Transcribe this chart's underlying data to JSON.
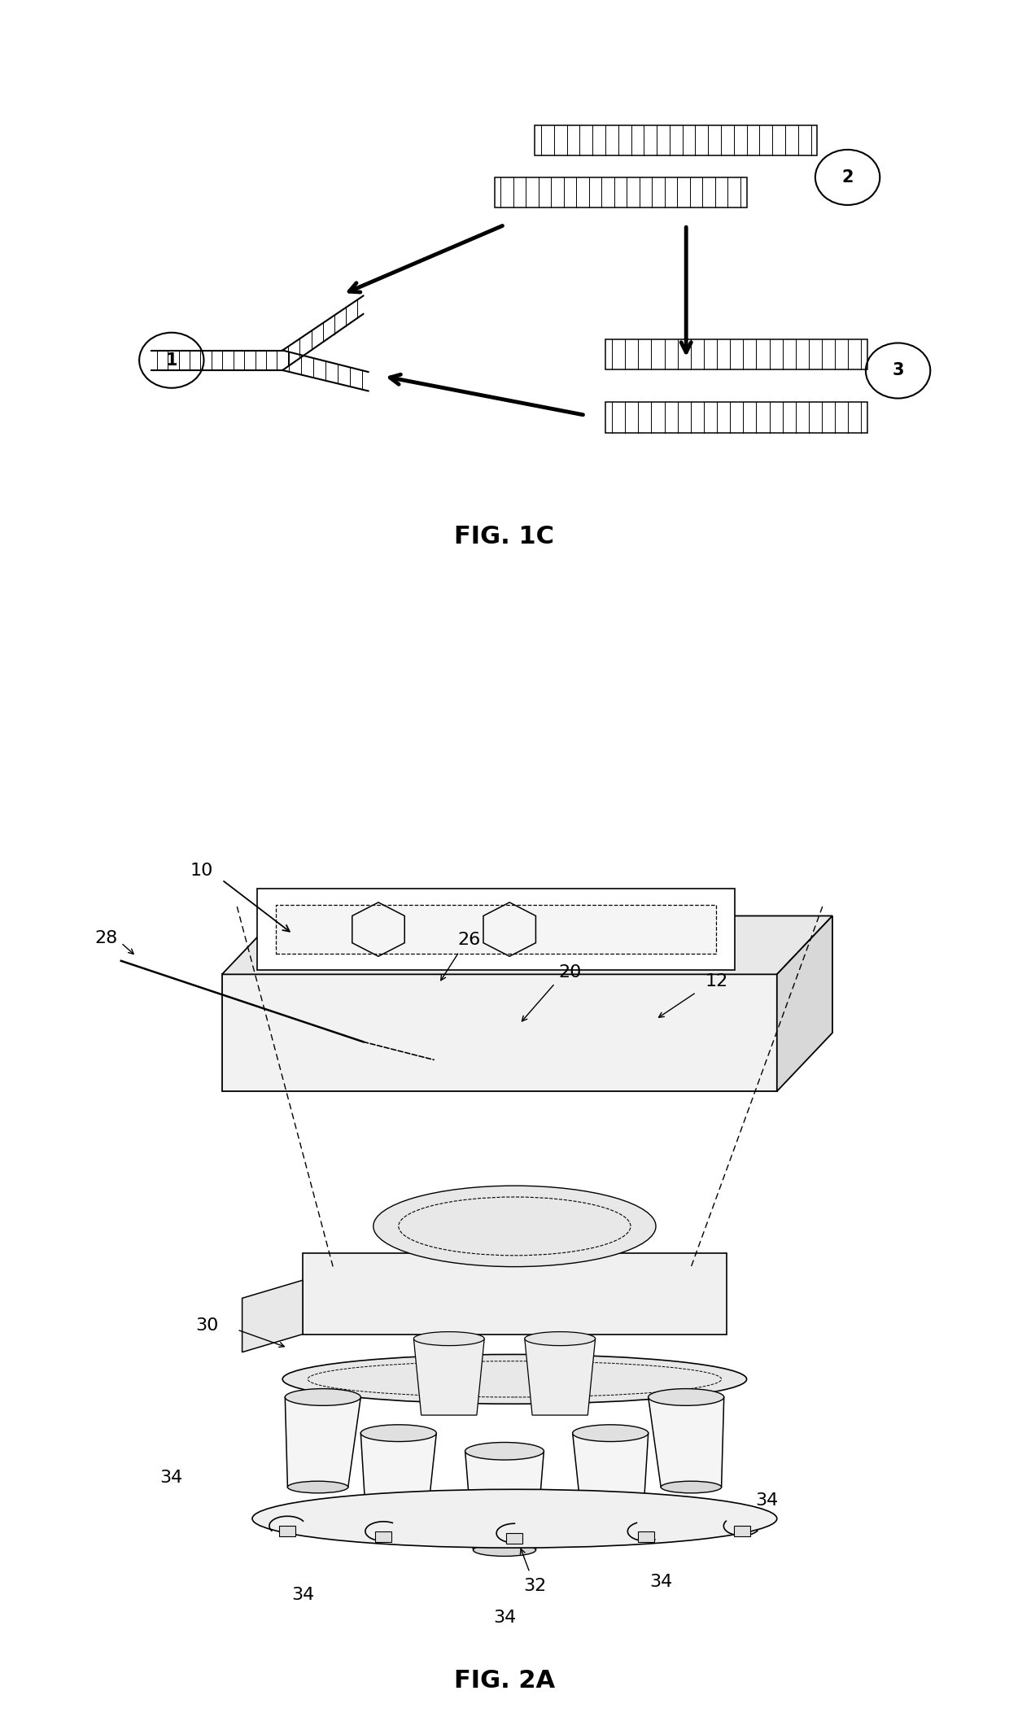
{
  "fig1c_label": "FIG. 1C",
  "fig2a_label": "FIG. 2A",
  "background_color": "#ffffff",
  "label_fontsize": 16,
  "caption_fontsize": 22
}
